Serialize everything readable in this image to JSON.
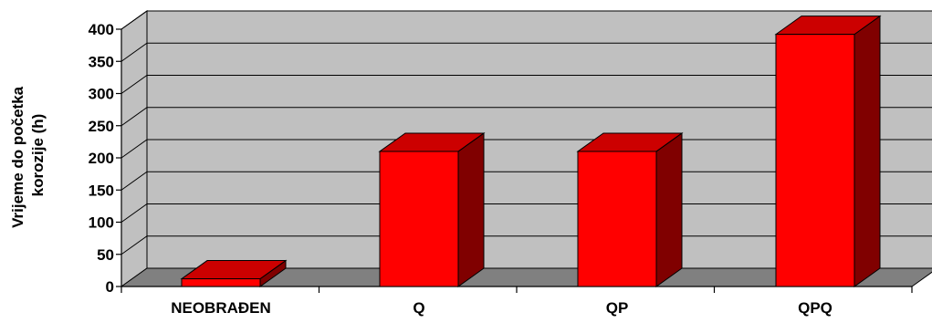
{
  "chart_data": {
    "type": "bar",
    "style": "3d",
    "title": "",
    "xlabel": "",
    "ylabel_lines": [
      "Vrijeme do početka",
      "korozije (h)"
    ],
    "categories": [
      "NEOBRAĐEN",
      "Q",
      "QP",
      "QPQ"
    ],
    "series": [
      {
        "values": [
          12,
          210,
          210,
          392
        ]
      }
    ],
    "ylim": [
      0,
      400
    ],
    "yticks": [
      0,
      50,
      100,
      150,
      200,
      250,
      300,
      350,
      400
    ],
    "grid": true,
    "legend": "none",
    "colors": {
      "bar_front": "#ff0000",
      "bar_top": "#cc0000",
      "bar_side": "#800000",
      "wall": "#c0c0c0",
      "floor": "#808080",
      "axis": "#000000"
    }
  }
}
